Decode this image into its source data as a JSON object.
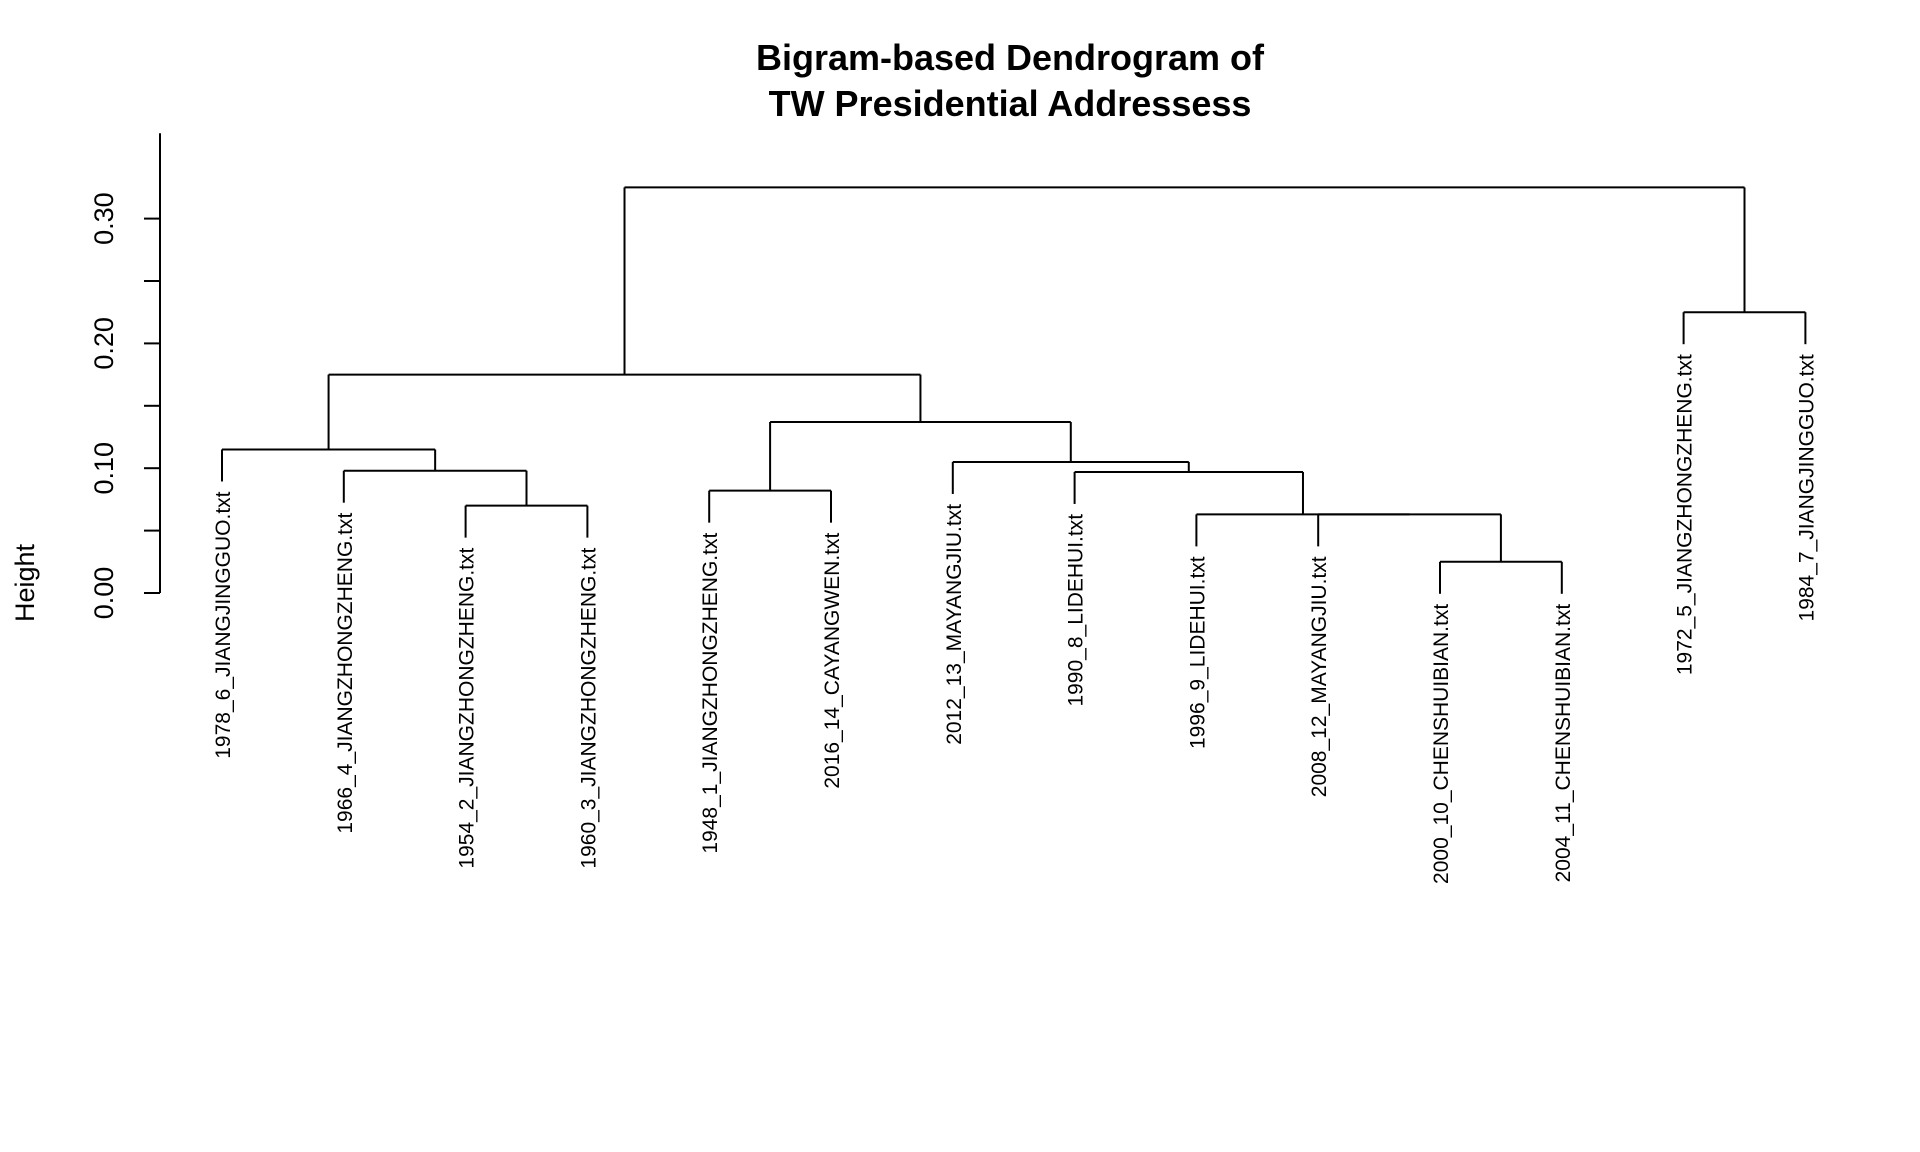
{
  "chart_data": {
    "type": "dendrogram",
    "title_line1": "Bigram-based Dendrogram of",
    "title_line2": "TW Presidential Addressess",
    "ylabel": "Height",
    "xlabel": "",
    "ylim": [
      0,
      0.35
    ],
    "yticks": [
      0.0,
      0.1,
      0.2,
      0.3
    ],
    "ytick_labels": [
      "0.00",
      "0.10",
      "0.20",
      "0.30"
    ],
    "yminor_ticks": [
      0.05,
      0.15,
      0.25
    ],
    "grid": false,
    "leaves": [
      {
        "label": "1978_6_JIANGJINGGUO.txt",
        "height": 0.0
      },
      {
        "label": "1966_4_JIANGZHONGZHENG.txt",
        "height": 0.0
      },
      {
        "label": "1954_2_JIANGZHONGZHENG.txt",
        "height": 0.0
      },
      {
        "label": "1960_3_JIANGZHONGZHENG.txt",
        "height": 0.0
      },
      {
        "label": "1948_1_JIANGZHONGZHENG.txt",
        "height": 0.0
      },
      {
        "label": "2016_14_CAYANGWEN.txt",
        "height": 0.0
      },
      {
        "label": "2012_13_MAYANGJIU.txt",
        "height": 0.0
      },
      {
        "label": "1990_8_LIDEHUI.txt",
        "height": 0.0
      },
      {
        "label": "1996_9_LIDEHUI.txt",
        "height": 0.0
      },
      {
        "label": "2008_12_MAYANGJIU.txt",
        "height": 0.0
      },
      {
        "label": "2000_10_CHENSHUIBIAN.txt",
        "height": 0.0
      },
      {
        "label": "2004_11_CHENSHUIBIAN.txt",
        "height": 0.0
      },
      {
        "label": "1972_5_JIANGZHONGZHENG.txt",
        "height": 0.0
      },
      {
        "label": "1984_7_JIANGJINGGUO.txt",
        "height": 0.0
      }
    ],
    "merges": [
      {
        "left": 10,
        "right": 11,
        "height": 0.025
      },
      {
        "left": 2,
        "right": 3,
        "height": 0.07
      },
      {
        "left": 4,
        "right": 5,
        "height": 0.082
      },
      {
        "left": 9,
        "right": "m0",
        "height": 0.063
      },
      {
        "left": 8,
        "right": "m3",
        "height": 0.063
      },
      {
        "left": 7,
        "right": "m4",
        "height": 0.097
      },
      {
        "left": 1,
        "right": "m1",
        "height": 0.098
      },
      {
        "left": 6,
        "right": "m5",
        "height": 0.105
      },
      {
        "left": 0,
        "right": "m6",
        "height": 0.115
      },
      {
        "left": "m2",
        "right": "m7",
        "height": 0.137
      },
      {
        "left": "m8",
        "right": "m9",
        "height": 0.175
      },
      {
        "left": 12,
        "right": 13,
        "height": 0.225
      },
      {
        "left": "m10",
        "right": "m11",
        "height": 0.325
      }
    ]
  }
}
